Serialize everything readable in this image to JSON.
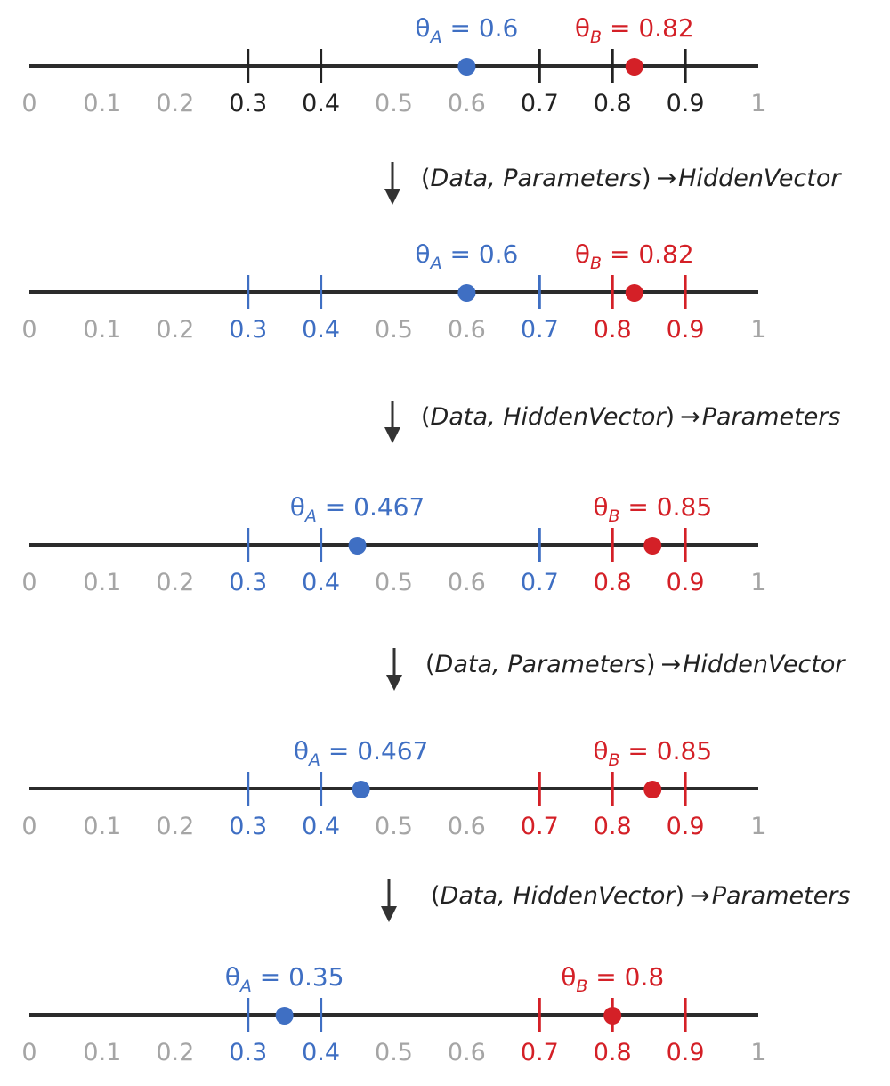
{
  "colors": {
    "blue": "#3f6fc3",
    "red": "#d42027",
    "gray": "#a5a5a5",
    "black": "#222222",
    "line": "#2b2b2b",
    "arrow": "#333333"
  },
  "tick_labels": [
    "0",
    "0.1",
    "0.2",
    "0.3",
    "0.4",
    "0.5",
    "0.6",
    "0.7",
    "0.8",
    "0.9",
    "1"
  ],
  "icons": {
    "down_arrow": "down-arrow-icon",
    "right_arrow": "right-arrow-icon"
  },
  "number_lines": [
    {
      "ticks": [
        0.3,
        0.4,
        0.7,
        0.8,
        0.9
      ],
      "tick_colors": [
        "black",
        "black",
        "black",
        "black",
        "black"
      ],
      "theta_a": {
        "letter": "θ",
        "sub": "A",
        "eq": " = ",
        "value": "0.6",
        "x": 0.6
      },
      "theta_b": {
        "letter": "θ",
        "sub": "B",
        "eq": " = ",
        "value": "0.82",
        "x": 0.83
      }
    },
    {
      "ticks": [
        0.3,
        0.4,
        0.7,
        0.8,
        0.9
      ],
      "tick_colors": [
        "blue",
        "blue",
        "blue",
        "red",
        "red"
      ],
      "theta_a": {
        "letter": "θ",
        "sub": "A",
        "eq": " = ",
        "value": "0.6",
        "x": 0.6
      },
      "theta_b": {
        "letter": "θ",
        "sub": "B",
        "eq": " = ",
        "value": "0.82",
        "x": 0.83
      }
    },
    {
      "ticks": [
        0.3,
        0.4,
        0.7,
        0.8,
        0.9
      ],
      "tick_colors": [
        "blue",
        "blue",
        "blue",
        "red",
        "red"
      ],
      "theta_a": {
        "letter": "θ",
        "sub": "A",
        "eq": " = ",
        "value": "0.467",
        "x": 0.45
      },
      "theta_b": {
        "letter": "θ",
        "sub": "B",
        "eq": " = ",
        "value": "0.85",
        "x": 0.855
      }
    },
    {
      "ticks": [
        0.3,
        0.4,
        0.7,
        0.8,
        0.9
      ],
      "tick_colors": [
        "blue",
        "blue",
        "red",
        "red",
        "red"
      ],
      "theta_a": {
        "letter": "θ",
        "sub": "A",
        "eq": " = ",
        "value": "0.467",
        "x": 0.455
      },
      "theta_b": {
        "letter": "θ",
        "sub": "B",
        "eq": " = ",
        "value": "0.85",
        "x": 0.855
      }
    },
    {
      "ticks": [
        0.3,
        0.4,
        0.7,
        0.8,
        0.9
      ],
      "tick_colors": [
        "blue",
        "blue",
        "red",
        "red",
        "red"
      ],
      "theta_a": {
        "letter": "θ",
        "sub": "A",
        "eq": " = ",
        "value": "0.35",
        "x": 0.35
      },
      "theta_b": {
        "letter": "θ",
        "sub": "B",
        "eq": " = ",
        "value": "0.8",
        "x": 0.8
      }
    }
  ],
  "steps": [
    {
      "inputs": [
        "Data",
        "Parameters"
      ],
      "output": "HiddenVector"
    },
    {
      "inputs": [
        "Data",
        "HiddenVector"
      ],
      "output": "Parameters"
    },
    {
      "inputs": [
        "Data",
        "Parameters"
      ],
      "output": "HiddenVector"
    },
    {
      "inputs": [
        "Data",
        "HiddenVector"
      ],
      "output": "Parameters"
    }
  ]
}
